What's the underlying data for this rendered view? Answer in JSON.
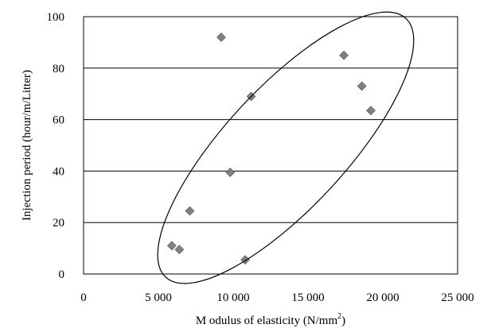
{
  "chart_data": {
    "type": "scatter",
    "title": "",
    "xlabel": "M odulus of elasticity (N/mm",
    "xlabel_superscript": "2",
    "xlabel_suffix": ")",
    "ylabel": "Injection period (hour/m/Litter)",
    "xlim": [
      0,
      25000
    ],
    "ylim": [
      0,
      100
    ],
    "x_ticks": [
      0,
      5000,
      10000,
      15000,
      20000,
      25000
    ],
    "x_tick_labels": [
      "0",
      "5 000",
      "10 000",
      "15 000",
      "20 000",
      "25 000"
    ],
    "y_ticks": [
      0,
      20,
      40,
      60,
      80,
      100
    ],
    "y_tick_labels": [
      "0",
      "20",
      "40",
      "60",
      "80",
      "100"
    ],
    "grid": "horizontal",
    "marker": "diamond",
    "marker_color": "#808080",
    "points": [
      {
        "x": 9200,
        "y": 92
      },
      {
        "x": 11200,
        "y": 69
      },
      {
        "x": 17400,
        "y": 85
      },
      {
        "x": 18600,
        "y": 73
      },
      {
        "x": 19200,
        "y": 63.5
      },
      {
        "x": 9800,
        "y": 39.5
      },
      {
        "x": 7100,
        "y": 24.5
      },
      {
        "x": 5900,
        "y": 11
      },
      {
        "x": 6400,
        "y": 9.5
      },
      {
        "x": 10800,
        "y": 5.5
      }
    ],
    "annotation": "ellipse enclosing all points"
  }
}
